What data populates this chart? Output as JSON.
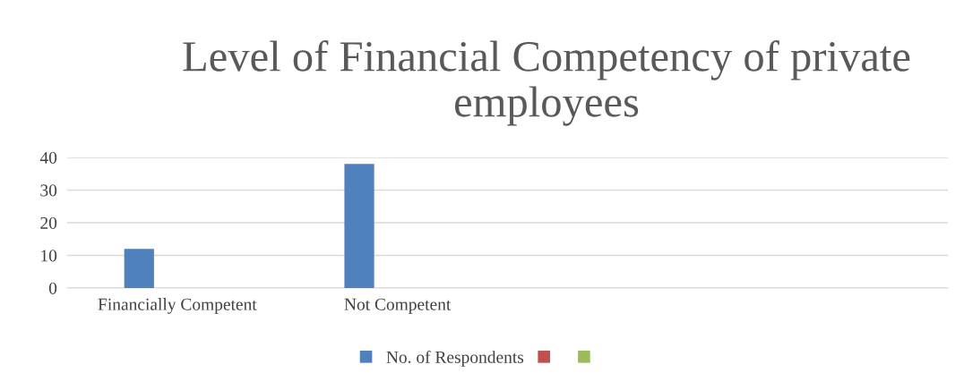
{
  "chart_data": {
    "type": "bar",
    "title": "Level of Financial Competency of private employees",
    "categories": [
      "Financially Competent",
      "Not Competent",
      null,
      null
    ],
    "series": [
      {
        "name": "No. of Respondents",
        "color": "#4f81bd",
        "values": [
          12,
          38,
          null,
          null
        ]
      },
      {
        "color": "#c0504d",
        "values": [
          null,
          null,
          null,
          null
        ]
      },
      {
        "color": "#9bbb59",
        "values": [
          null,
          null,
          null,
          null
        ]
      }
    ],
    "ylim": [
      0,
      40
    ],
    "yticks": [
      0,
      10,
      20,
      30,
      40
    ],
    "grid": "y",
    "legend": "bottom"
  }
}
